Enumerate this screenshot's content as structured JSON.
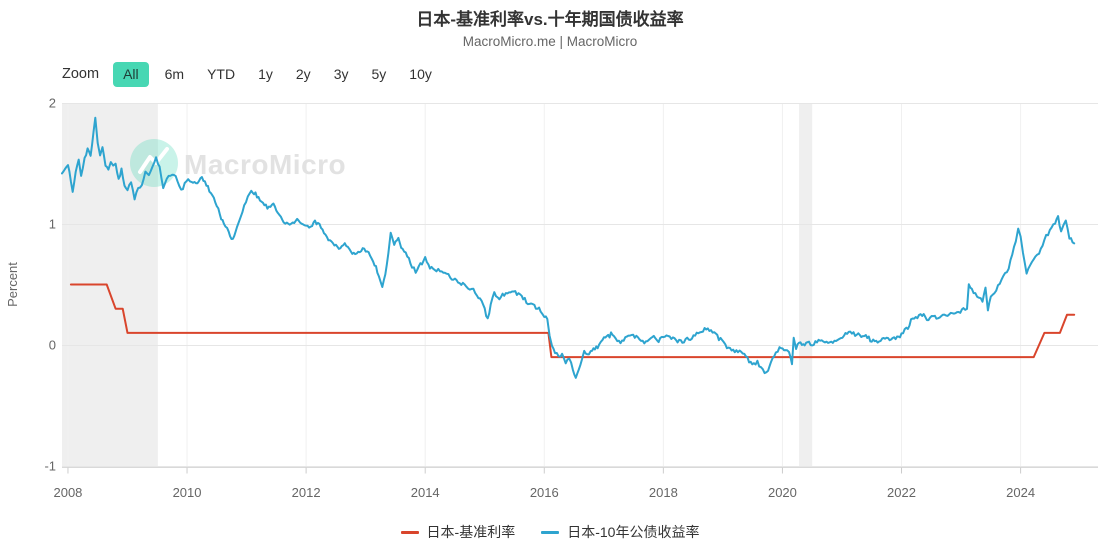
{
  "header": {
    "title": "日本-基准利率vs.十年期国债收益率",
    "subtitle": "MacroMicro.me | MacroMicro"
  },
  "toolbar": {
    "zoom_label": "Zoom",
    "ranges": [
      "All",
      "6m",
      "YTD",
      "1y",
      "2y",
      "3y",
      "5y",
      "10y"
    ],
    "selected": "All",
    "selected_bg": "#47d7b3"
  },
  "watermark": {
    "text": "MacroMicro",
    "circle_color": "rgba(77,214,182,0.30)",
    "text_color": "#e2e2e2"
  },
  "chart_data": {
    "type": "line",
    "title": "日本-基准利率vs.十年期国债收益率",
    "subtitle": "MacroMicro.me | MacroMicro",
    "xlabel": "",
    "ylabel": "Percent",
    "ylim": [
      -1,
      2
    ],
    "yticks": [
      2,
      1,
      0,
      -1
    ],
    "xlim": [
      2007.9,
      2025.3
    ],
    "xticks": [
      2008,
      2010,
      2012,
      2014,
      2016,
      2018,
      2020,
      2022,
      2024
    ],
    "grid": true,
    "legend_position": "bottom",
    "band_color": "#efefef",
    "bands": [
      {
        "from": 2007.9,
        "to": 2009.51
      },
      {
        "from": 2020.28,
        "to": 2020.5
      }
    ],
    "series": [
      {
        "name": "日本-基准利率",
        "color": "#d9452c",
        "noise": 0,
        "points": [
          [
            2008.05,
            0.5
          ],
          [
            2008.65,
            0.5
          ],
          [
            2008.8,
            0.3
          ],
          [
            2008.92,
            0.3
          ],
          [
            2009.0,
            0.1
          ],
          [
            2016.07,
            0.1
          ],
          [
            2016.12,
            -0.1
          ],
          [
            2024.22,
            -0.1
          ],
          [
            2024.4,
            0.1
          ],
          [
            2024.66,
            0.1
          ],
          [
            2024.78,
            0.25
          ],
          [
            2024.9,
            0.25
          ]
        ]
      },
      {
        "name": "日本-10年公债收益率",
        "color": "#2ea4cf",
        "noise": 0.015,
        "points": [
          [
            2007.9,
            1.42
          ],
          [
            2008.0,
            1.48
          ],
          [
            2008.05,
            1.36
          ],
          [
            2008.08,
            1.26
          ],
          [
            2008.13,
            1.44
          ],
          [
            2008.18,
            1.52
          ],
          [
            2008.22,
            1.4
          ],
          [
            2008.28,
            1.54
          ],
          [
            2008.33,
            1.63
          ],
          [
            2008.38,
            1.56
          ],
          [
            2008.43,
            1.78
          ],
          [
            2008.46,
            1.88
          ],
          [
            2008.5,
            1.68
          ],
          [
            2008.54,
            1.56
          ],
          [
            2008.58,
            1.62
          ],
          [
            2008.63,
            1.49
          ],
          [
            2008.68,
            1.45
          ],
          [
            2008.72,
            1.52
          ],
          [
            2008.76,
            1.48
          ],
          [
            2008.8,
            1.5
          ],
          [
            2008.85,
            1.36
          ],
          [
            2008.9,
            1.44
          ],
          [
            2008.95,
            1.3
          ],
          [
            2009.0,
            1.27
          ],
          [
            2009.06,
            1.34
          ],
          [
            2009.12,
            1.21
          ],
          [
            2009.18,
            1.28
          ],
          [
            2009.24,
            1.32
          ],
          [
            2009.3,
            1.44
          ],
          [
            2009.36,
            1.4
          ],
          [
            2009.42,
            1.47
          ],
          [
            2009.48,
            1.54
          ],
          [
            2009.54,
            1.46
          ],
          [
            2009.6,
            1.31
          ],
          [
            2009.66,
            1.36
          ],
          [
            2009.72,
            1.4
          ],
          [
            2009.78,
            1.42
          ],
          [
            2009.84,
            1.33
          ],
          [
            2009.9,
            1.27
          ],
          [
            2009.96,
            1.32
          ],
          [
            2010.05,
            1.37
          ],
          [
            2010.15,
            1.33
          ],
          [
            2010.25,
            1.38
          ],
          [
            2010.35,
            1.31
          ],
          [
            2010.45,
            1.22
          ],
          [
            2010.55,
            1.08
          ],
          [
            2010.62,
            1.0
          ],
          [
            2010.7,
            0.93
          ],
          [
            2010.77,
            0.86
          ],
          [
            2010.84,
            0.97
          ],
          [
            2010.9,
            1.05
          ],
          [
            2010.96,
            1.14
          ],
          [
            2011.02,
            1.22
          ],
          [
            2011.08,
            1.29
          ],
          [
            2011.15,
            1.24
          ],
          [
            2011.25,
            1.17
          ],
          [
            2011.35,
            1.13
          ],
          [
            2011.45,
            1.16
          ],
          [
            2011.55,
            1.07
          ],
          [
            2011.65,
            1.01
          ],
          [
            2011.75,
            0.99
          ],
          [
            2011.85,
            1.04
          ],
          [
            2011.95,
            0.99
          ],
          [
            2012.05,
            0.97
          ],
          [
            2012.15,
            1.01
          ],
          [
            2012.25,
            0.97
          ],
          [
            2012.35,
            0.89
          ],
          [
            2012.45,
            0.84
          ],
          [
            2012.55,
            0.79
          ],
          [
            2012.65,
            0.83
          ],
          [
            2012.75,
            0.78
          ],
          [
            2012.85,
            0.75
          ],
          [
            2012.95,
            0.79
          ],
          [
            2013.05,
            0.76
          ],
          [
            2013.15,
            0.67
          ],
          [
            2013.22,
            0.58
          ],
          [
            2013.28,
            0.47
          ],
          [
            2013.33,
            0.6
          ],
          [
            2013.38,
            0.75
          ],
          [
            2013.42,
            0.91
          ],
          [
            2013.48,
            0.83
          ],
          [
            2013.55,
            0.87
          ],
          [
            2013.62,
            0.79
          ],
          [
            2013.7,
            0.73
          ],
          [
            2013.78,
            0.66
          ],
          [
            2013.84,
            0.61
          ],
          [
            2013.92,
            0.67
          ],
          [
            2014.0,
            0.71
          ],
          [
            2014.08,
            0.64
          ],
          [
            2014.16,
            0.61
          ],
          [
            2014.25,
            0.62
          ],
          [
            2014.33,
            0.59
          ],
          [
            2014.42,
            0.57
          ],
          [
            2014.5,
            0.54
          ],
          [
            2014.58,
            0.52
          ],
          [
            2014.66,
            0.5
          ],
          [
            2014.75,
            0.47
          ],
          [
            2014.84,
            0.44
          ],
          [
            2014.92,
            0.38
          ],
          [
            2015.0,
            0.29
          ],
          [
            2015.05,
            0.21
          ],
          [
            2015.1,
            0.33
          ],
          [
            2015.16,
            0.44
          ],
          [
            2015.22,
            0.39
          ],
          [
            2015.3,
            0.41
          ],
          [
            2015.38,
            0.44
          ],
          [
            2015.46,
            0.46
          ],
          [
            2015.54,
            0.42
          ],
          [
            2015.62,
            0.39
          ],
          [
            2015.7,
            0.36
          ],
          [
            2015.78,
            0.33
          ],
          [
            2015.86,
            0.3
          ],
          [
            2015.94,
            0.29
          ],
          [
            2016.0,
            0.25
          ],
          [
            2016.05,
            0.21
          ],
          [
            2016.09,
            0.08
          ],
          [
            2016.13,
            -0.01
          ],
          [
            2016.18,
            -0.06
          ],
          [
            2016.24,
            -0.1
          ],
          [
            2016.3,
            -0.08
          ],
          [
            2016.36,
            -0.14
          ],
          [
            2016.42,
            -0.1
          ],
          [
            2016.48,
            -0.19
          ],
          [
            2016.53,
            -0.27
          ],
          [
            2016.58,
            -0.21
          ],
          [
            2016.63,
            -0.13
          ],
          [
            2016.67,
            -0.05
          ],
          [
            2016.72,
            -0.08
          ],
          [
            2016.78,
            -0.06
          ],
          [
            2016.85,
            -0.03
          ],
          [
            2016.92,
            0.0
          ],
          [
            2016.98,
            0.04
          ],
          [
            2017.05,
            0.07
          ],
          [
            2017.12,
            0.09
          ],
          [
            2017.2,
            0.06
          ],
          [
            2017.28,
            0.03
          ],
          [
            2017.36,
            0.05
          ],
          [
            2017.44,
            0.07
          ],
          [
            2017.52,
            0.08
          ],
          [
            2017.6,
            0.05
          ],
          [
            2017.68,
            0.03
          ],
          [
            2017.76,
            0.04
          ],
          [
            2017.84,
            0.06
          ],
          [
            2017.92,
            0.04
          ],
          [
            2018.0,
            0.05
          ],
          [
            2018.08,
            0.08
          ],
          [
            2018.16,
            0.06
          ],
          [
            2018.24,
            0.04
          ],
          [
            2018.32,
            0.03
          ],
          [
            2018.4,
            0.04
          ],
          [
            2018.48,
            0.06
          ],
          [
            2018.56,
            0.1
          ],
          [
            2018.64,
            0.12
          ],
          [
            2018.72,
            0.13
          ],
          [
            2018.8,
            0.12
          ],
          [
            2018.88,
            0.1
          ],
          [
            2018.96,
            0.04
          ],
          [
            2019.04,
            0.0
          ],
          [
            2019.12,
            -0.02
          ],
          [
            2019.2,
            -0.04
          ],
          [
            2019.28,
            -0.06
          ],
          [
            2019.36,
            -0.09
          ],
          [
            2019.44,
            -0.13
          ],
          [
            2019.52,
            -0.16
          ],
          [
            2019.58,
            -0.14
          ],
          [
            2019.64,
            -0.19
          ],
          [
            2019.7,
            -0.25
          ],
          [
            2019.76,
            -0.21
          ],
          [
            2019.81,
            -0.13
          ],
          [
            2019.86,
            -0.08
          ],
          [
            2019.92,
            -0.05
          ],
          [
            2019.98,
            -0.02
          ],
          [
            2020.05,
            -0.04
          ],
          [
            2020.11,
            -0.07
          ],
          [
            2020.16,
            -0.15
          ],
          [
            2020.19,
            0.06
          ],
          [
            2020.23,
            -0.02
          ],
          [
            2020.28,
            0.03
          ],
          [
            2020.35,
            0.01
          ],
          [
            2020.42,
            0.02
          ],
          [
            2020.5,
            0.01
          ],
          [
            2020.58,
            0.03
          ],
          [
            2020.66,
            0.02
          ],
          [
            2020.74,
            0.03
          ],
          [
            2020.82,
            0.02
          ],
          [
            2020.9,
            0.03
          ],
          [
            2020.98,
            0.05
          ],
          [
            2021.06,
            0.09
          ],
          [
            2021.14,
            0.12
          ],
          [
            2021.22,
            0.09
          ],
          [
            2021.3,
            0.09
          ],
          [
            2021.4,
            0.07
          ],
          [
            2021.5,
            0.04
          ],
          [
            2021.6,
            0.03
          ],
          [
            2021.7,
            0.05
          ],
          [
            2021.8,
            0.04
          ],
          [
            2021.9,
            0.06
          ],
          [
            2022.0,
            0.09
          ],
          [
            2022.08,
            0.14
          ],
          [
            2022.16,
            0.19
          ],
          [
            2022.24,
            0.22
          ],
          [
            2022.32,
            0.24
          ],
          [
            2022.4,
            0.23
          ],
          [
            2022.48,
            0.22
          ],
          [
            2022.56,
            0.23
          ],
          [
            2022.64,
            0.24
          ],
          [
            2022.72,
            0.25
          ],
          [
            2022.8,
            0.25
          ],
          [
            2022.88,
            0.26
          ],
          [
            2022.96,
            0.27
          ],
          [
            2023.04,
            0.29
          ],
          [
            2023.1,
            0.3
          ],
          [
            2023.13,
            0.5
          ],
          [
            2023.18,
            0.46
          ],
          [
            2023.24,
            0.43
          ],
          [
            2023.3,
            0.4
          ],
          [
            2023.36,
            0.36
          ],
          [
            2023.41,
            0.47
          ],
          [
            2023.45,
            0.29
          ],
          [
            2023.5,
            0.4
          ],
          [
            2023.56,
            0.44
          ],
          [
            2023.62,
            0.5
          ],
          [
            2023.68,
            0.54
          ],
          [
            2023.74,
            0.59
          ],
          [
            2023.8,
            0.64
          ],
          [
            2023.86,
            0.74
          ],
          [
            2023.92,
            0.86
          ],
          [
            2023.96,
            0.95
          ],
          [
            2024.0,
            0.89
          ],
          [
            2024.04,
            0.76
          ],
          [
            2024.1,
            0.6
          ],
          [
            2024.16,
            0.66
          ],
          [
            2024.22,
            0.72
          ],
          [
            2024.28,
            0.74
          ],
          [
            2024.34,
            0.81
          ],
          [
            2024.4,
            0.87
          ],
          [
            2024.46,
            0.92
          ],
          [
            2024.52,
            0.96
          ],
          [
            2024.58,
            1.0
          ],
          [
            2024.63,
            1.07
          ],
          [
            2024.68,
            0.94
          ],
          [
            2024.72,
            1.0
          ],
          [
            2024.76,
            1.05
          ],
          [
            2024.82,
            0.9
          ],
          [
            2024.9,
            0.84
          ]
        ]
      }
    ],
    "colors": {
      "grid": "#e6e6e6",
      "vgrid": "#f0f0f0",
      "axis_line": "#d9d9d9",
      "tick": "#cccccc",
      "axis_text": "#666666"
    }
  }
}
